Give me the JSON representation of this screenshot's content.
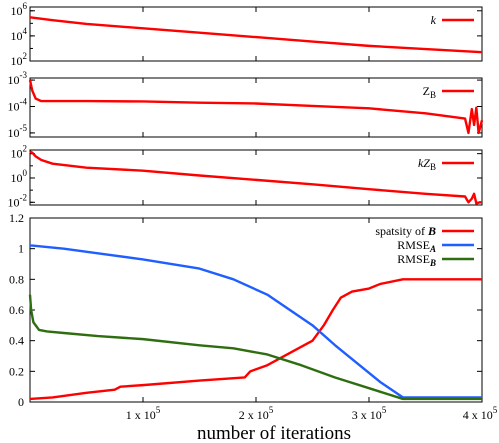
{
  "chart_data": [
    {
      "type": "line",
      "yscale": "log",
      "ylim": [
        100,
        2000000
      ],
      "xlim": [
        0,
        400000
      ],
      "yticks": [
        {
          "value": 100,
          "base": "10",
          "exp": "2"
        },
        {
          "value": 10000,
          "base": "10",
          "exp": "4"
        },
        {
          "value": 1000000,
          "base": "10",
          "exp": "6"
        }
      ],
      "series": [
        {
          "name": "k",
          "name_parts": [
            {
              "text": "k",
              "style": "italic"
            }
          ],
          "color": "#ff0000",
          "x": [
            0,
            20000,
            50000,
            100000,
            150000,
            200000,
            250000,
            300000,
            350000,
            400000
          ],
          "y": [
            300000,
            180000,
            90000,
            40000,
            18000,
            8000,
            3500,
            1600,
            900,
            500
          ]
        }
      ]
    },
    {
      "type": "line",
      "yscale": "log",
      "ylim": [
        7e-06,
        0.0012
      ],
      "xlim": [
        0,
        400000
      ],
      "yticks": [
        {
          "value": 1e-05,
          "base": "10",
          "exp": "-5"
        },
        {
          "value": 0.0001,
          "base": "10",
          "exp": "-4"
        },
        {
          "value": 0.001,
          "base": "10",
          "exp": "-3"
        }
      ],
      "series": [
        {
          "name": "ZB",
          "name_parts": [
            {
              "text": "Z",
              "style": "normal"
            },
            {
              "text": "B",
              "style": "sub"
            }
          ],
          "color": "#ff0000",
          "x": [
            0,
            500,
            2000,
            5000,
            10000,
            20000,
            50000,
            100000,
            150000,
            200000,
            250000,
            300000,
            350000,
            385000,
            388000,
            391000,
            393000,
            395000,
            397000,
            400000
          ],
          "y": [
            0.001,
            0.0008,
            0.0004,
            0.0002,
            0.00016,
            0.00016,
            0.00016,
            0.000155,
            0.00014,
            0.00013,
            0.000105,
            8.5e-05,
            5.5e-05,
            3.5e-05,
            1e-05,
            8e-05,
            2e-05,
            9e-05,
            1e-05,
            3e-05
          ]
        }
      ]
    },
    {
      "type": "line",
      "yscale": "log",
      "ylim": [
        0.006,
        200
      ],
      "xlim": [
        0,
        400000
      ],
      "yticks": [
        {
          "value": 0.01,
          "base": "10",
          "exp": "-2"
        },
        {
          "value": 1,
          "base": "10",
          "exp": "0"
        },
        {
          "value": 100,
          "base": "10",
          "exp": "2"
        }
      ],
      "series": [
        {
          "name": "kZB",
          "name_parts": [
            {
              "text": "kZ",
              "style": "italic"
            },
            {
              "text": "B",
              "style": "sub"
            }
          ],
          "color": "#ff0000",
          "x": [
            0,
            2000,
            5000,
            10000,
            20000,
            50000,
            100000,
            150000,
            200000,
            250000,
            300000,
            350000,
            385000,
            388000,
            391000,
            393000,
            395000,
            398000,
            400000
          ],
          "y": [
            150,
            120,
            60,
            30,
            15,
            7,
            4,
            1.6,
            0.7,
            0.3,
            0.12,
            0.05,
            0.03,
            0.01,
            0.02,
            0.05,
            0.008,
            0.01,
            0.01
          ]
        }
      ]
    },
    {
      "type": "line",
      "xlabel": "number of iterations",
      "xlim": [
        0,
        400000
      ],
      "ylim": [
        0,
        1.2
      ],
      "xticks": [
        {
          "value": 100000,
          "mant": "1 x 10",
          "exp": "5"
        },
        {
          "value": 200000,
          "mant": "2 x 10",
          "exp": "5"
        },
        {
          "value": 300000,
          "mant": "3 x 10",
          "exp": "5"
        },
        {
          "value": 400000,
          "mant": "4 x 10",
          "exp": "5"
        }
      ],
      "yticks": [
        "0",
        "0.2",
        "0.4",
        "0.6",
        "0.8",
        "1",
        "1.2"
      ],
      "legend_position": "top-right",
      "series": [
        {
          "name": "spatsity of B",
          "name_parts": [
            {
              "text": "spatsity of ",
              "style": "normal"
            },
            {
              "text": "B",
              "style": "bolditalic"
            }
          ],
          "color": "#ff0000",
          "x": [
            0,
            20000,
            50000,
            75000,
            80000,
            100000,
            150000,
            190000,
            195000,
            210000,
            230000,
            250000,
            260000,
            268000,
            275000,
            285000,
            300000,
            310000,
            330000,
            400000
          ],
          "y": [
            0.02,
            0.03,
            0.06,
            0.08,
            0.1,
            0.11,
            0.14,
            0.16,
            0.2,
            0.24,
            0.32,
            0.4,
            0.5,
            0.6,
            0.68,
            0.72,
            0.74,
            0.77,
            0.8,
            0.8
          ]
        },
        {
          "name": "RMSE_A",
          "name_parts": [
            {
              "text": "RMSE",
              "style": "normal"
            },
            {
              "text": "A",
              "style": "subbolditalic"
            }
          ],
          "color": "#1f5fff",
          "x": [
            0,
            2000,
            30000,
            60000,
            100000,
            150000,
            180000,
            210000,
            230000,
            250000,
            270000,
            290000,
            310000,
            330000,
            335000,
            400000
          ],
          "y": [
            1.02,
            1.02,
            1.0,
            0.97,
            0.93,
            0.87,
            0.8,
            0.7,
            0.6,
            0.5,
            0.37,
            0.25,
            0.13,
            0.03,
            0.03,
            0.03
          ]
        },
        {
          "name": "RMSE_B",
          "name_parts": [
            {
              "text": "RMSE",
              "style": "normal"
            },
            {
              "text": "B",
              "style": "subbolditalic"
            }
          ],
          "color": "#2e6e10",
          "x": [
            0,
            1000,
            3000,
            8000,
            15000,
            30000,
            60000,
            100000,
            150000,
            180000,
            210000,
            240000,
            270000,
            300000,
            330000,
            400000
          ],
          "y": [
            0.7,
            0.6,
            0.52,
            0.47,
            0.46,
            0.45,
            0.43,
            0.41,
            0.37,
            0.35,
            0.31,
            0.24,
            0.16,
            0.09,
            0.02,
            0.02
          ]
        }
      ]
    }
  ]
}
